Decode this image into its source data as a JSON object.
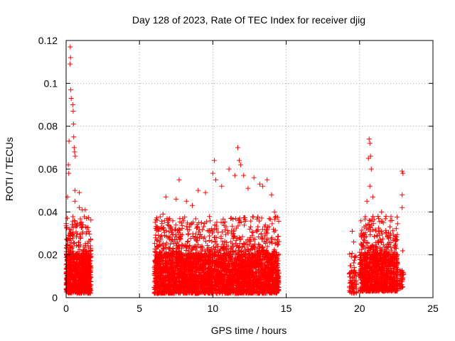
{
  "chart_data": {
    "type": "scatter",
    "title": "Day 128 of 2023, Rate Of TEC Index for receiver djig",
    "xlabel": "GPS time / hours",
    "ylabel": "ROTI / TECUs",
    "xlim": [
      0,
      25
    ],
    "ylim": [
      0,
      0.12
    ],
    "xticks": [
      0,
      5,
      10,
      15,
      20,
      25
    ],
    "xtick_labels": [
      "0",
      "5",
      "10",
      "15",
      "20",
      "25"
    ],
    "yticks": [
      0,
      0.02,
      0.04,
      0.06,
      0.08,
      0.1,
      0.12
    ],
    "ytick_labels": [
      "0",
      "0.02",
      "0.04",
      "0.06",
      "0.08",
      "0.1",
      "0.12"
    ],
    "grid": true,
    "marker": "+",
    "color": "#ff0000",
    "series": [
      {
        "name": "ROTI",
        "clusters": [
          {
            "x_range": [
              0.0,
              1.7
            ],
            "typical_range": [
              0.002,
              0.02
            ],
            "dense_points": 900
          },
          {
            "x_range": [
              6.0,
              14.5
            ],
            "typical_range": [
              0.002,
              0.02
            ],
            "dense_points": 3600
          },
          {
            "x_range": [
              19.3,
              19.8
            ],
            "typical_range": [
              0.002,
              0.012
            ],
            "dense_points": 80
          },
          {
            "x_range": [
              20.0,
              22.6
            ],
            "typical_range": [
              0.003,
              0.02
            ],
            "dense_points": 1100
          },
          {
            "x_range": [
              22.7,
              23.0
            ],
            "typical_range": [
              0.004,
              0.012
            ],
            "dense_points": 40
          }
        ],
        "outliers": [
          [
            0.1,
            0.047
          ],
          [
            0.15,
            0.062
          ],
          [
            0.18,
            0.058
          ],
          [
            0.2,
            0.073
          ],
          [
            0.28,
            0.117
          ],
          [
            0.3,
            0.112
          ],
          [
            0.27,
            0.109
          ],
          [
            0.32,
            0.097
          ],
          [
            0.35,
            0.093
          ],
          [
            0.45,
            0.09
          ],
          [
            0.48,
            0.087
          ],
          [
            0.5,
            0.081
          ],
          [
            0.52,
            0.075
          ],
          [
            0.55,
            0.07
          ],
          [
            0.58,
            0.068
          ],
          [
            0.62,
            0.066
          ],
          [
            0.6,
            0.05
          ],
          [
            0.9,
            0.049
          ],
          [
            0.6,
            0.045
          ],
          [
            0.9,
            0.042
          ],
          [
            1.1,
            0.041
          ],
          [
            1.3,
            0.041
          ],
          [
            1.4,
            0.037
          ],
          [
            6.3,
            0.029
          ],
          [
            6.6,
            0.039
          ],
          [
            6.8,
            0.047
          ],
          [
            7.5,
            0.046
          ],
          [
            7.7,
            0.055
          ],
          [
            8.2,
            0.045
          ],
          [
            8.6,
            0.043
          ],
          [
            9.0,
            0.05
          ],
          [
            9.5,
            0.049
          ],
          [
            10.0,
            0.058
          ],
          [
            10.1,
            0.064
          ],
          [
            10.2,
            0.055
          ],
          [
            10.6,
            0.052
          ],
          [
            11.1,
            0.06
          ],
          [
            11.5,
            0.057
          ],
          [
            11.7,
            0.07
          ],
          [
            11.8,
            0.064
          ],
          [
            11.9,
            0.062
          ],
          [
            12.1,
            0.057
          ],
          [
            12.4,
            0.051
          ],
          [
            12.8,
            0.056
          ],
          [
            13.2,
            0.053
          ],
          [
            13.4,
            0.052
          ],
          [
            13.7,
            0.055
          ],
          [
            14.0,
            0.048
          ],
          [
            14.2,
            0.04
          ],
          [
            19.5,
            0.031
          ],
          [
            19.6,
            0.026
          ],
          [
            20.5,
            0.045
          ],
          [
            20.6,
            0.065
          ],
          [
            20.65,
            0.074
          ],
          [
            20.7,
            0.072
          ],
          [
            20.75,
            0.066
          ],
          [
            20.8,
            0.06
          ],
          [
            20.7,
            0.052
          ],
          [
            20.9,
            0.047
          ],
          [
            21.3,
            0.037
          ],
          [
            21.5,
            0.04
          ],
          [
            21.8,
            0.038
          ],
          [
            22.2,
            0.036
          ],
          [
            22.9,
            0.059
          ],
          [
            22.95,
            0.058
          ],
          [
            22.9,
            0.048
          ],
          [
            22.9,
            0.042
          ]
        ]
      }
    ]
  }
}
